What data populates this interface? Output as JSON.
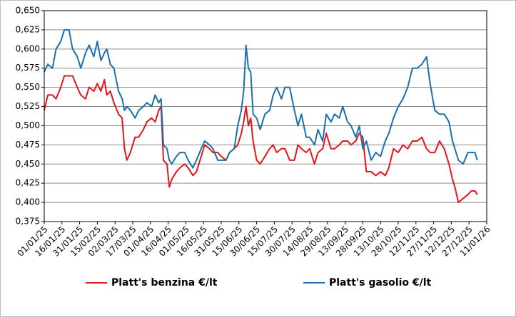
{
  "chart_data": {
    "type": "line",
    "x": [
      "01/01/25",
      "04/01/25",
      "08/01/25",
      "11/01/25",
      "15/01/25",
      "18/01/25",
      "22/01/25",
      "25/01/25",
      "29/01/25",
      "01/02/25",
      "05/02/25",
      "08/02/25",
      "12/02/25",
      "15/02/25",
      "18/02/25",
      "21/02/25",
      "23/02/25",
      "26/02/25",
      "01/03/25",
      "05/03/25",
      "08/03/25",
      "10/03/25",
      "12/03/25",
      "15/03/25",
      "19/03/25",
      "22/03/25",
      "26/03/25",
      "29/03/25",
      "02/04/25",
      "05/04/25",
      "08/04/25",
      "10/04/25",
      "12/04/25",
      "15/04/25",
      "17/04/25",
      "19/04/25",
      "23/04/25",
      "26/04/25",
      "30/04/25",
      "03/05/25",
      "07/05/25",
      "10/05/25",
      "14/05/25",
      "17/05/25",
      "21/05/25",
      "24/05/25",
      "28/05/25",
      "31/05/25",
      "04/06/25",
      "07/06/25",
      "11/06/25",
      "14/06/25",
      "17/06/25",
      "19/06/25",
      "21/06/25",
      "23/06/25",
      "25/06/25",
      "27/06/25",
      "30/06/25",
      "03/07/25",
      "07/07/25",
      "11/07/25",
      "14/07/25",
      "17/07/25",
      "21/07/25",
      "24/07/25",
      "28/07/25",
      "01/08/25",
      "04/08/25",
      "07/08/25",
      "11/08/25",
      "14/08/25",
      "18/08/25",
      "21/08/25",
      "25/08/25",
      "28/08/25",
      "01/09/25",
      "04/09/25",
      "08/09/25",
      "11/09/25",
      "15/09/25",
      "18/09/25",
      "22/09/25",
      "25/09/25",
      "28/09/25",
      "01/10/25",
      "05/10/25",
      "09/10/25",
      "13/10/25",
      "17/10/25",
      "20/10/25",
      "24/10/25",
      "28/10/25",
      "01/11/25",
      "05/11/25",
      "09/11/25",
      "13/11/25",
      "17/11/25",
      "21/11/25",
      "24/11/25",
      "28/11/25",
      "02/12/25",
      "06/12/25",
      "10/12/25",
      "13/12/25",
      "15/12/25",
      "18/12/25",
      "22/12/25",
      "26/12/25",
      "29/12/25",
      "01/01/26",
      "03/01/26"
    ],
    "series": [
      {
        "name": "Platt's benzina €/lt",
        "color": "#e3151b",
        "values": [
          0.52,
          0.54,
          0.54,
          0.535,
          0.55,
          0.565,
          0.565,
          0.565,
          0.55,
          0.54,
          0.535,
          0.55,
          0.545,
          0.555,
          0.545,
          0.56,
          0.54,
          0.545,
          0.53,
          0.515,
          0.51,
          0.47,
          0.455,
          0.465,
          0.485,
          0.485,
          0.495,
          0.505,
          0.51,
          0.505,
          0.52,
          0.525,
          0.455,
          0.45,
          0.42,
          0.43,
          0.44,
          0.445,
          0.45,
          0.445,
          0.435,
          0.44,
          0.46,
          0.475,
          0.47,
          0.465,
          0.465,
          0.46,
          0.455,
          0.465,
          0.47,
          0.475,
          0.49,
          0.505,
          0.525,
          0.5,
          0.51,
          0.48,
          0.455,
          0.45,
          0.46,
          0.47,
          0.475,
          0.465,
          0.47,
          0.47,
          0.455,
          0.455,
          0.475,
          0.47,
          0.465,
          0.47,
          0.45,
          0.465,
          0.47,
          0.49,
          0.47,
          0.47,
          0.475,
          0.48,
          0.48,
          0.475,
          0.48,
          0.49,
          0.485,
          0.44,
          0.44,
          0.435,
          0.44,
          0.435,
          0.445,
          0.47,
          0.465,
          0.475,
          0.47,
          0.48,
          0.48,
          0.485,
          0.47,
          0.465,
          0.465,
          0.48,
          0.47,
          0.45,
          0.43,
          0.42,
          0.4,
          0.405,
          0.41,
          0.415,
          0.415,
          0.41
        ]
      },
      {
        "name": "Platt's gasolio €/lt",
        "color": "#1c6fae",
        "values": [
          0.57,
          0.58,
          0.575,
          0.6,
          0.61,
          0.625,
          0.625,
          0.6,
          0.59,
          0.575,
          0.595,
          0.605,
          0.59,
          0.61,
          0.585,
          0.595,
          0.6,
          0.58,
          0.575,
          0.545,
          0.535,
          0.52,
          0.525,
          0.52,
          0.51,
          0.52,
          0.525,
          0.53,
          0.525,
          0.54,
          0.53,
          0.535,
          0.475,
          0.47,
          0.455,
          0.45,
          0.46,
          0.465,
          0.465,
          0.455,
          0.445,
          0.455,
          0.47,
          0.48,
          0.475,
          0.47,
          0.455,
          0.455,
          0.455,
          0.465,
          0.47,
          0.5,
          0.52,
          0.545,
          0.605,
          0.575,
          0.57,
          0.515,
          0.51,
          0.495,
          0.515,
          0.52,
          0.54,
          0.55,
          0.535,
          0.55,
          0.55,
          0.52,
          0.5,
          0.515,
          0.485,
          0.485,
          0.475,
          0.495,
          0.48,
          0.515,
          0.505,
          0.515,
          0.51,
          0.525,
          0.505,
          0.5,
          0.485,
          0.5,
          0.47,
          0.48,
          0.455,
          0.465,
          0.46,
          0.48,
          0.49,
          0.51,
          0.525,
          0.535,
          0.55,
          0.575,
          0.575,
          0.58,
          0.59,
          0.555,
          0.52,
          0.515,
          0.515,
          0.505,
          0.48,
          0.47,
          0.455,
          0.45,
          0.465,
          0.465,
          0.465,
          0.455
        ]
      }
    ],
    "xlim": [
      "01/01/25",
      "11/01/26"
    ],
    "xticks": [
      "01/01/25",
      "16/01/25",
      "31/01/25",
      "15/02/25",
      "02/03/25",
      "17/03/25",
      "01/04/25",
      "16/04/25",
      "01/05/25",
      "16/05/25",
      "31/05/25",
      "15/06/25",
      "30/06/25",
      "15/07/25",
      "30/07/25",
      "14/08/25",
      "29/08/25",
      "13/09/25",
      "28/09/25",
      "13/10/25",
      "28/10/25",
      "12/11/25",
      "27/11/25",
      "12/12/25",
      "27/12/25",
      "11/01/26"
    ],
    "ylim": [
      0.375,
      0.65
    ],
    "yticks": [
      {
        "value": 0.375,
        "label": "0,375"
      },
      {
        "value": 0.4,
        "label": "0,400"
      },
      {
        "value": 0.425,
        "label": "0,425"
      },
      {
        "value": 0.45,
        "label": "0,450"
      },
      {
        "value": 0.475,
        "label": "0,475"
      },
      {
        "value": 0.5,
        "label": "0,500"
      },
      {
        "value": 0.525,
        "label": "0,525"
      },
      {
        "value": 0.55,
        "label": "0,550"
      },
      {
        "value": 0.575,
        "label": "0,575"
      },
      {
        "value": 0.6,
        "label": "0,600"
      },
      {
        "value": 0.625,
        "label": "0,625"
      },
      {
        "value": 0.65,
        "label": "0,650"
      }
    ],
    "grid": true
  }
}
